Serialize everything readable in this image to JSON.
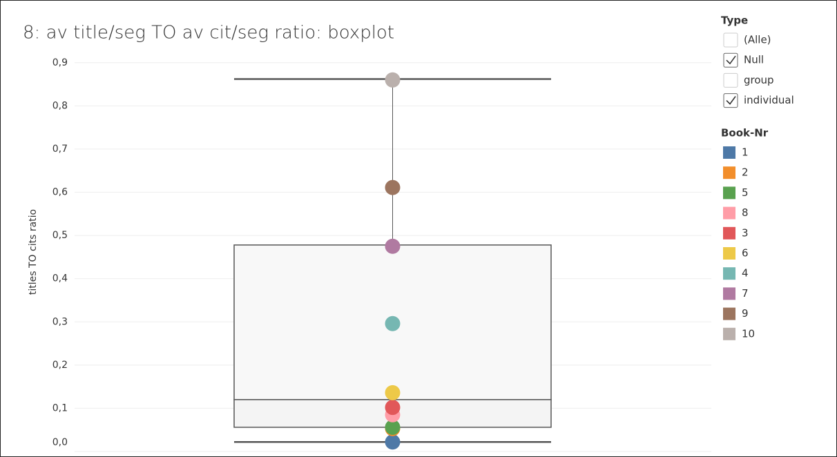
{
  "chart_data": {
    "type": "boxplot",
    "title": "8: av title/seg TO av cit/seg ratio: boxplot",
    "y_label": "titles TO cits ratio",
    "ylim": [
      -0.012,
      0.93
    ],
    "yticks": [
      {
        "value": 0,
        "label": "0,0"
      },
      {
        "value": 0.1,
        "label": "0,1"
      },
      {
        "value": 0.2,
        "label": "0,2"
      },
      {
        "value": 0.3,
        "label": "0,3"
      },
      {
        "value": 0.4,
        "label": "0,4"
      },
      {
        "value": 0.5,
        "label": "0,5"
      },
      {
        "value": 0.6,
        "label": "0,6"
      },
      {
        "value": 0.7,
        "label": "0,7"
      },
      {
        "value": 0.8,
        "label": "0,8"
      },
      {
        "value": 0.9,
        "label": "0,9"
      }
    ],
    "grid": true,
    "box": {
      "whisker_low": 0.022,
      "q1": 0.056,
      "median": 0.12,
      "q3": 0.478,
      "whisker_high": 0.862,
      "color": "#555555"
    },
    "legend_title": "Book-Nr",
    "series": [
      {
        "name": "1",
        "color": "#4e79a7",
        "values": [
          0.022
        ]
      },
      {
        "name": "2",
        "color": "#f28e2b",
        "values": [
          0.053
        ]
      },
      {
        "name": "5",
        "color": "#59a14f",
        "values": [
          0.056
        ]
      },
      {
        "name": "8",
        "color": "#ff9da7",
        "values": [
          0.085
        ]
      },
      {
        "name": "3",
        "color": "#e15759",
        "values": [
          0.102
        ]
      },
      {
        "name": "6",
        "color": "#edc948",
        "values": [
          0.136
        ]
      },
      {
        "name": "4",
        "color": "#76b7b2",
        "values": [
          0.296
        ]
      },
      {
        "name": "7",
        "color": "#b07aa1",
        "values": [
          0.475
        ]
      },
      {
        "name": "9",
        "color": "#9c755f",
        "values": [
          0.611
        ]
      },
      {
        "name": "10",
        "color": "#bab0ac",
        "values": [
          0.86
        ]
      }
    ],
    "filter": {
      "title": "Type",
      "options": [
        {
          "label": "(Alle)",
          "checked": false
        },
        {
          "label": "Null",
          "checked": true
        },
        {
          "label": "group",
          "checked": false
        },
        {
          "label": "individual",
          "checked": true
        }
      ]
    }
  }
}
